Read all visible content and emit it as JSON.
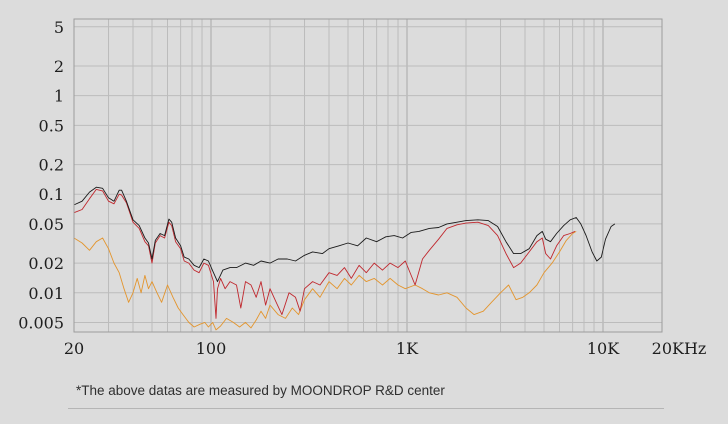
{
  "chart_data": {
    "type": "line",
    "title": "",
    "xlabel": "",
    "ylabel": "",
    "x_scale": "log",
    "y_scale": "log",
    "xlim": [
      20,
      20000
    ],
    "ylim": [
      0.004,
      6
    ],
    "x_ticks": [
      {
        "value": 20,
        "label": "20"
      },
      {
        "value": 100,
        "label": "100"
      },
      {
        "value": 1000,
        "label": "1K"
      },
      {
        "value": 10000,
        "label": "10K"
      },
      {
        "value": 20000,
        "label": "20KHz"
      }
    ],
    "y_ticks": [
      {
        "value": 5,
        "label": "5"
      },
      {
        "value": 2,
        "label": "2"
      },
      {
        "value": 1,
        "label": "1"
      },
      {
        "value": 0.5,
        "label": "0.5"
      },
      {
        "value": 0.2,
        "label": "0.2"
      },
      {
        "value": 0.1,
        "label": "0.1"
      },
      {
        "value": 0.05,
        "label": "0.05"
      },
      {
        "value": 0.02,
        "label": "0.02"
      },
      {
        "value": 0.01,
        "label": "0.01"
      },
      {
        "value": 0.005,
        "label": "0.005"
      }
    ],
    "grid": true,
    "series": [
      {
        "name": "black",
        "color": "#1a1a1a",
        "points": [
          [
            20,
            0.078
          ],
          [
            22,
            0.085
          ],
          [
            24,
            0.105
          ],
          [
            26,
            0.118
          ],
          [
            28,
            0.115
          ],
          [
            30,
            0.092
          ],
          [
            32,
            0.085
          ],
          [
            34,
            0.11
          ],
          [
            35,
            0.11
          ],
          [
            37,
            0.085
          ],
          [
            40,
            0.055
          ],
          [
            43,
            0.048
          ],
          [
            46,
            0.036
          ],
          [
            48,
            0.032
          ],
          [
            50,
            0.022
          ],
          [
            52,
            0.034
          ],
          [
            55,
            0.04
          ],
          [
            58,
            0.038
          ],
          [
            61,
            0.056
          ],
          [
            63,
            0.052
          ],
          [
            66,
            0.036
          ],
          [
            70,
            0.03
          ],
          [
            73,
            0.023
          ],
          [
            77,
            0.022
          ],
          [
            82,
            0.019
          ],
          [
            87,
            0.018
          ],
          [
            92,
            0.022
          ],
          [
            97,
            0.021
          ],
          [
            103,
            0.016
          ],
          [
            108,
            0.013
          ],
          [
            115,
            0.017
          ],
          [
            125,
            0.018
          ],
          [
            135,
            0.018
          ],
          [
            150,
            0.02
          ],
          [
            165,
            0.019
          ],
          [
            180,
            0.021
          ],
          [
            200,
            0.02
          ],
          [
            220,
            0.022
          ],
          [
            245,
            0.022
          ],
          [
            270,
            0.021
          ],
          [
            300,
            0.024
          ],
          [
            330,
            0.026
          ],
          [
            370,
            0.025
          ],
          [
            400,
            0.028
          ],
          [
            450,
            0.03
          ],
          [
            500,
            0.032
          ],
          [
            560,
            0.03
          ],
          [
            620,
            0.036
          ],
          [
            700,
            0.033
          ],
          [
            780,
            0.037
          ],
          [
            860,
            0.038
          ],
          [
            950,
            0.036
          ],
          [
            1050,
            0.041
          ],
          [
            1150,
            0.042
          ],
          [
            1300,
            0.045
          ],
          [
            1450,
            0.046
          ],
          [
            1600,
            0.05
          ],
          [
            1800,
            0.052
          ],
          [
            2000,
            0.054
          ],
          [
            2300,
            0.055
          ],
          [
            2600,
            0.054
          ],
          [
            2900,
            0.047
          ],
          [
            3200,
            0.033
          ],
          [
            3500,
            0.025
          ],
          [
            3800,
            0.025
          ],
          [
            4200,
            0.028
          ],
          [
            4600,
            0.038
          ],
          [
            4900,
            0.042
          ],
          [
            5100,
            0.035
          ],
          [
            5400,
            0.033
          ],
          [
            5800,
            0.04
          ],
          [
            6300,
            0.048
          ],
          [
            6800,
            0.055
          ],
          [
            7300,
            0.058
          ],
          [
            7700,
            0.05
          ],
          [
            8200,
            0.038
          ],
          [
            8800,
            0.026
          ],
          [
            9300,
            0.021
          ],
          [
            9800,
            0.023
          ],
          [
            10300,
            0.035
          ],
          [
            11000,
            0.047
          ],
          [
            11500,
            0.05
          ]
        ]
      },
      {
        "name": "red",
        "color": "#c0282e",
        "points": [
          [
            20,
            0.065
          ],
          [
            22,
            0.07
          ],
          [
            24,
            0.09
          ],
          [
            26,
            0.112
          ],
          [
            28,
            0.108
          ],
          [
            30,
            0.085
          ],
          [
            32,
            0.08
          ],
          [
            34,
            0.1
          ],
          [
            35,
            0.098
          ],
          [
            37,
            0.082
          ],
          [
            40,
            0.052
          ],
          [
            43,
            0.045
          ],
          [
            46,
            0.033
          ],
          [
            48,
            0.03
          ],
          [
            50,
            0.02
          ],
          [
            52,
            0.032
          ],
          [
            55,
            0.038
          ],
          [
            58,
            0.036
          ],
          [
            61,
            0.052
          ],
          [
            63,
            0.048
          ],
          [
            66,
            0.033
          ],
          [
            70,
            0.028
          ],
          [
            73,
            0.021
          ],
          [
            77,
            0.02
          ],
          [
            82,
            0.017
          ],
          [
            87,
            0.016
          ],
          [
            92,
            0.02
          ],
          [
            97,
            0.019
          ],
          [
            103,
            0.013
          ],
          [
            106,
            0.0055
          ],
          [
            108,
            0.011
          ],
          [
            112,
            0.014
          ],
          [
            118,
            0.011
          ],
          [
            125,
            0.013
          ],
          [
            135,
            0.012
          ],
          [
            142,
            0.007
          ],
          [
            150,
            0.013
          ],
          [
            160,
            0.012
          ],
          [
            170,
            0.009
          ],
          [
            180,
            0.013
          ],
          [
            190,
            0.0075
          ],
          [
            200,
            0.011
          ],
          [
            215,
            0.008
          ],
          [
            230,
            0.006
          ],
          [
            250,
            0.01
          ],
          [
            270,
            0.009
          ],
          [
            285,
            0.0065
          ],
          [
            300,
            0.011
          ],
          [
            330,
            0.013
          ],
          [
            360,
            0.012
          ],
          [
            400,
            0.016
          ],
          [
            440,
            0.015
          ],
          [
            480,
            0.018
          ],
          [
            520,
            0.014
          ],
          [
            570,
            0.019
          ],
          [
            620,
            0.016
          ],
          [
            680,
            0.02
          ],
          [
            750,
            0.017
          ],
          [
            820,
            0.02
          ],
          [
            900,
            0.018
          ],
          [
            980,
            0.021
          ],
          [
            1100,
            0.012
          ],
          [
            1200,
            0.022
          ],
          [
            1300,
            0.027
          ],
          [
            1450,
            0.035
          ],
          [
            1600,
            0.045
          ],
          [
            1800,
            0.049
          ],
          [
            2000,
            0.051
          ],
          [
            2300,
            0.052
          ],
          [
            2600,
            0.048
          ],
          [
            2900,
            0.038
          ],
          [
            3200,
            0.025
          ],
          [
            3500,
            0.018
          ],
          [
            3800,
            0.02
          ],
          [
            4200,
            0.026
          ],
          [
            4600,
            0.033
          ],
          [
            4900,
            0.036
          ],
          [
            5100,
            0.025
          ],
          [
            5400,
            0.022
          ],
          [
            5800,
            0.03
          ],
          [
            6300,
            0.038
          ],
          [
            6800,
            0.04
          ],
          [
            7200,
            0.042
          ]
        ]
      },
      {
        "name": "orange",
        "color": "#e3952e",
        "points": [
          [
            20,
            0.036
          ],
          [
            22,
            0.032
          ],
          [
            24,
            0.027
          ],
          [
            26,
            0.033
          ],
          [
            28,
            0.036
          ],
          [
            30,
            0.028
          ],
          [
            32,
            0.02
          ],
          [
            34,
            0.016
          ],
          [
            36,
            0.011
          ],
          [
            38,
            0.008
          ],
          [
            40,
            0.01
          ],
          [
            42,
            0.014
          ],
          [
            44,
            0.01
          ],
          [
            46,
            0.015
          ],
          [
            48,
            0.011
          ],
          [
            50,
            0.013
          ],
          [
            53,
            0.01
          ],
          [
            56,
            0.008
          ],
          [
            60,
            0.012
          ],
          [
            64,
            0.009
          ],
          [
            68,
            0.007
          ],
          [
            72,
            0.006
          ],
          [
            77,
            0.005
          ],
          [
            82,
            0.0045
          ],
          [
            88,
            0.0048
          ],
          [
            93,
            0.005
          ],
          [
            97,
            0.0045
          ],
          [
            102,
            0.005
          ],
          [
            106,
            0.0042
          ],
          [
            112,
            0.0046
          ],
          [
            120,
            0.0055
          ],
          [
            130,
            0.005
          ],
          [
            140,
            0.0045
          ],
          [
            150,
            0.005
          ],
          [
            160,
            0.0044
          ],
          [
            170,
            0.0053
          ],
          [
            180,
            0.0065
          ],
          [
            190,
            0.0055
          ],
          [
            200,
            0.0075
          ],
          [
            220,
            0.006
          ],
          [
            240,
            0.0055
          ],
          [
            260,
            0.007
          ],
          [
            280,
            0.006
          ],
          [
            300,
            0.0085
          ],
          [
            330,
            0.011
          ],
          [
            360,
            0.009
          ],
          [
            400,
            0.013
          ],
          [
            440,
            0.011
          ],
          [
            480,
            0.014
          ],
          [
            520,
            0.012
          ],
          [
            570,
            0.015
          ],
          [
            620,
            0.013
          ],
          [
            680,
            0.014
          ],
          [
            750,
            0.012
          ],
          [
            820,
            0.014
          ],
          [
            900,
            0.012
          ],
          [
            980,
            0.011
          ],
          [
            1100,
            0.012
          ],
          [
            1200,
            0.011
          ],
          [
            1300,
            0.01
          ],
          [
            1450,
            0.0095
          ],
          [
            1600,
            0.01
          ],
          [
            1800,
            0.009
          ],
          [
            2000,
            0.007
          ],
          [
            2200,
            0.006
          ],
          [
            2450,
            0.0065
          ],
          [
            2700,
            0.008
          ],
          [
            3000,
            0.01
          ],
          [
            3300,
            0.012
          ],
          [
            3600,
            0.0085
          ],
          [
            3900,
            0.009
          ],
          [
            4200,
            0.01
          ],
          [
            4600,
            0.012
          ],
          [
            5000,
            0.016
          ],
          [
            5500,
            0.02
          ],
          [
            6000,
            0.026
          ],
          [
            6500,
            0.034
          ],
          [
            7000,
            0.04
          ],
          [
            7300,
            0.042
          ]
        ]
      }
    ]
  },
  "footnote": "*The above datas are measured by MOONDROP R&D center"
}
